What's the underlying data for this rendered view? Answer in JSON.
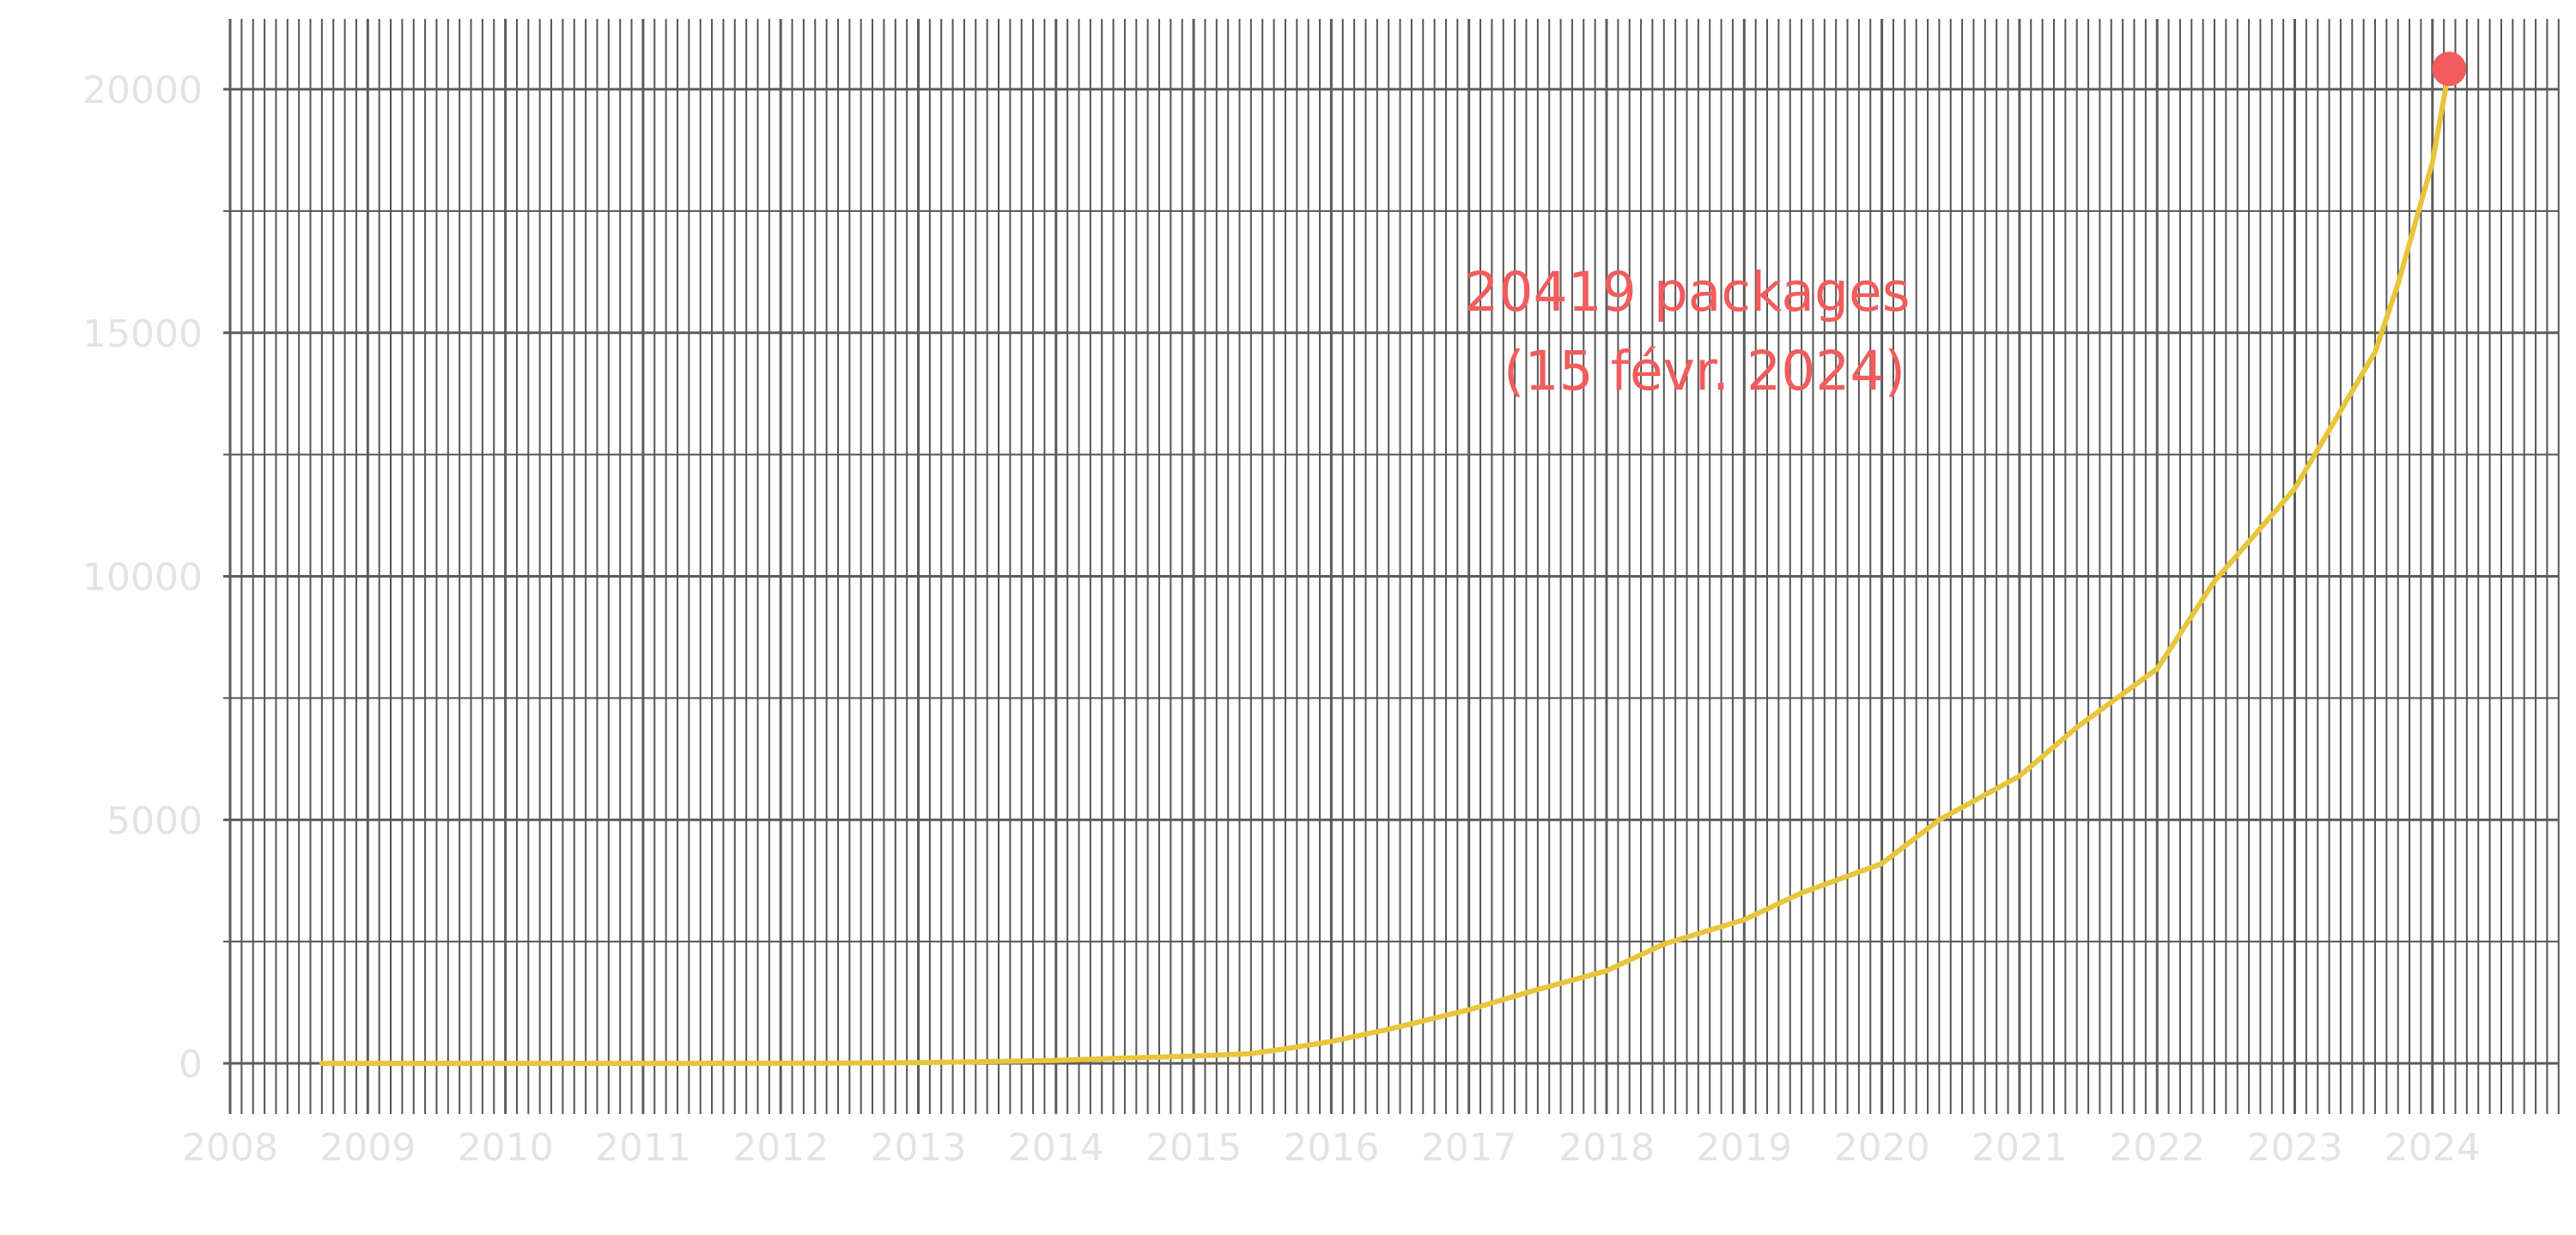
{
  "chart_data": {
    "type": "line",
    "title": "",
    "xlabel": "",
    "ylabel": "",
    "x_ticks": [
      "2008",
      "2009",
      "2010",
      "2011",
      "2012",
      "2013",
      "2014",
      "2015",
      "2016",
      "2017",
      "2018",
      "2019",
      "2020",
      "2021",
      "2022",
      "2023",
      "2024"
    ],
    "y_ticks": [
      "0",
      "5000",
      "10000",
      "15000",
      "20000"
    ],
    "xlim": [
      "2008-01-01",
      "2024-12-01"
    ],
    "ylim": [
      -1000,
      21400
    ],
    "grid": true,
    "grid_minor_x": "monthly",
    "series": [
      {
        "color": "#e8c53a",
        "points": [
          [
            "2008-09-01",
            0
          ],
          [
            "2009-06-01",
            0
          ],
          [
            "2010-06-01",
            0
          ],
          [
            "2011-06-01",
            0
          ],
          [
            "2012-06-01",
            5
          ],
          [
            "2013-01-01",
            15
          ],
          [
            "2013-06-01",
            30
          ],
          [
            "2014-01-01",
            60
          ],
          [
            "2014-06-01",
            100
          ],
          [
            "2015-01-01",
            150
          ],
          [
            "2015-06-01",
            200
          ],
          [
            "2015-09-01",
            300
          ],
          [
            "2016-01-01",
            450
          ],
          [
            "2016-06-01",
            700
          ],
          [
            "2017-01-01",
            1100
          ],
          [
            "2017-06-01",
            1450
          ],
          [
            "2018-01-01",
            1900
          ],
          [
            "2018-06-01",
            2450
          ],
          [
            "2019-01-01",
            2950
          ],
          [
            "2019-06-01",
            3500
          ],
          [
            "2020-01-01",
            4100
          ],
          [
            "2020-06-01",
            5000
          ],
          [
            "2021-01-01",
            5900
          ],
          [
            "2021-06-01",
            6900
          ],
          [
            "2022-01-01",
            8100
          ],
          [
            "2022-06-01",
            9900
          ],
          [
            "2023-01-01",
            11800
          ],
          [
            "2023-08-01",
            14600
          ],
          [
            "2023-10-01",
            16000
          ],
          [
            "2024-01-01",
            18500
          ],
          [
            "2024-02-15",
            20419
          ]
        ]
      }
    ],
    "highlight": {
      "x": "2024-02-15",
      "y": 20419,
      "color": "#f25c5c"
    },
    "annotation": {
      "lines": [
        "20419 packages",
        "(15 févr. 2024)"
      ],
      "color": "#f25c5c"
    }
  }
}
